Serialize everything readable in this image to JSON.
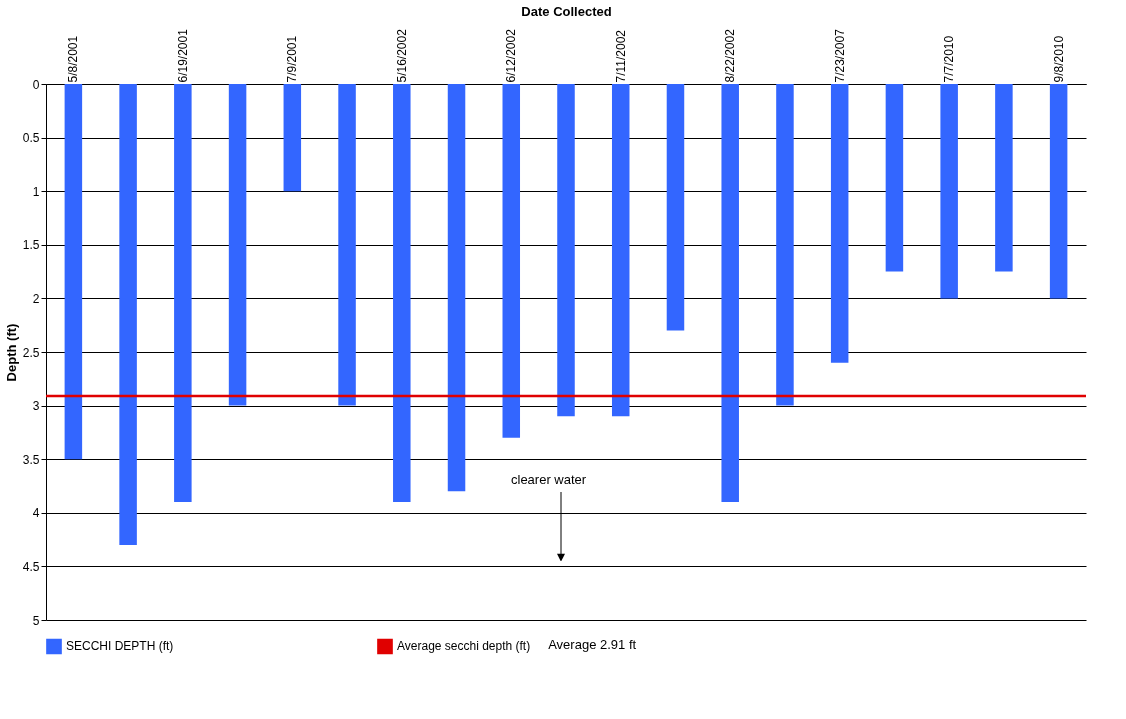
{
  "chart_data": {
    "type": "bar",
    "xlabel": "Date Collected",
    "ylabel": "Depth (ft)",
    "categories": [
      "5/8/2001",
      null,
      "6/19/2001",
      null,
      "7/9/2001",
      null,
      "5/16/2002",
      null,
      "6/12/2002",
      null,
      "7/11/2002",
      null,
      "8/22/2002",
      null,
      "7/23/2007",
      null,
      "7/7/2010",
      null,
      "9/8/2010"
    ],
    "series": [
      {
        "name": "SECCHI DEPTH (ft)",
        "color": "#3366ff",
        "values": [
          3.5,
          4.3,
          3.9,
          3.0,
          1.0,
          3.0,
          3.9,
          3.8,
          3.3,
          3.1,
          3.1,
          2.3,
          3.9,
          3.0,
          2.6,
          1.75,
          2.0,
          1.75,
          2.0
        ]
      }
    ],
    "ylim": [
      5,
      0
    ],
    "yticks": [
      0,
      0.5,
      1,
      1.5,
      2,
      2.5,
      3,
      3.5,
      4,
      4.5,
      5
    ],
    "grid": "y",
    "legend": "bottom",
    "ref_lines": [
      {
        "axis": "y",
        "value": 2.91,
        "label": "Average secchi depth (ft)",
        "color": "#e00000"
      }
    ],
    "annotations": [
      "clearer water",
      "Average 2.91 ft"
    ]
  }
}
